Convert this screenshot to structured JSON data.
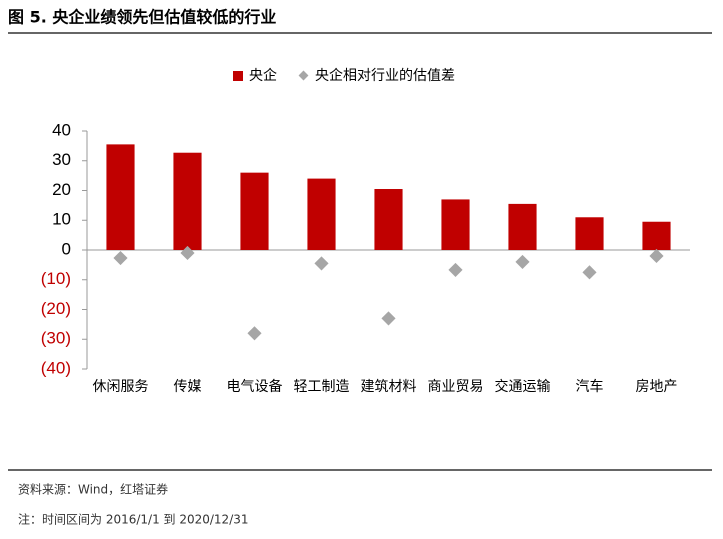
{
  "chart_data": {
    "type": "bar",
    "title": "图 5. 央企业绩领先但估值较低的行业",
    "categories": [
      "休闲服务",
      "传媒",
      "电气设备",
      "轻工制造",
      "建筑材料",
      "商业贸易",
      "交通运输",
      "汽车",
      "房地产"
    ],
    "series": [
      {
        "name": "央企",
        "color": "#c00000",
        "values": [
          35.5,
          32.7,
          26,
          24,
          20.5,
          17,
          15.5,
          11,
          9.5
        ]
      },
      {
        "name": "央企相对行业的估值差",
        "color": "#a6a6a6",
        "marker": "diamond",
        "values": [
          -2.7,
          -1,
          -28,
          -4.5,
          -23,
          -6.7,
          -4,
          -7.5,
          -2
        ]
      }
    ],
    "ylim": [
      -40,
      40
    ],
    "yticks": [
      40,
      30,
      20,
      10,
      0,
      {
        "value": -10,
        "label": "(10)"
      },
      {
        "value": -20,
        "label": "(20)"
      },
      {
        "value": -30,
        "label": "(30)"
      },
      {
        "value": -40,
        "label": "(40)"
      }
    ],
    "negative_tick_color": "#c00000",
    "legend": "top"
  },
  "source": "资料来源：Wind，红塔证券",
  "note": "注：时间区间为 2016/1/1 到 2020/12/31"
}
